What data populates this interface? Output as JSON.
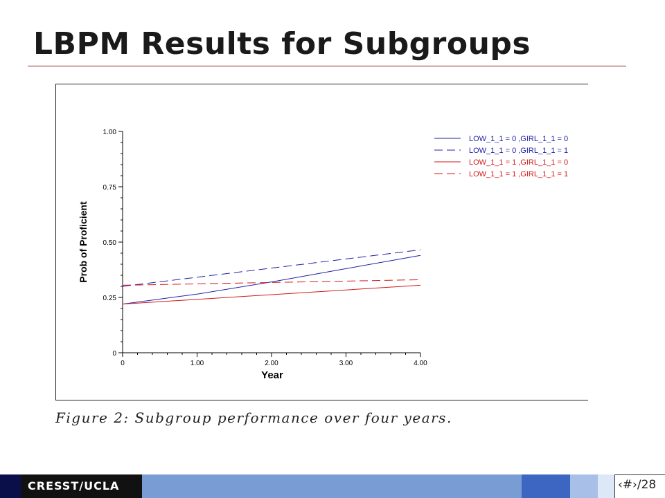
{
  "slide": {
    "title": "LBPM Results for Subgroups",
    "caption": "Figure 2:  Subgroup performance over four years."
  },
  "footer": {
    "brand": "CRESST/UCLA",
    "page_label": "‹#›/28"
  },
  "colors": {
    "blue": "#1f1fa8",
    "red": "#d01818",
    "title_rule": "#8b1c1c"
  },
  "chart_data": {
    "type": "line",
    "title": "",
    "xlabel": "Year",
    "ylabel": "Prob of Proficient",
    "xlim": [
      0,
      4
    ],
    "ylim": [
      0,
      1
    ],
    "x_ticks": [
      "0",
      "1.00",
      "2.00",
      "3.00",
      "4.00"
    ],
    "y_ticks": [
      "0",
      "0.25",
      "0.50",
      "0.75",
      "1.00"
    ],
    "x": [
      0,
      4
    ],
    "legend_position": "top-right",
    "grid": false,
    "series": [
      {
        "name": "LOW_1_1 = 0 ,GIRL_1_1 = 0",
        "x": [
          0,
          1,
          2,
          3,
          4
        ],
        "values": [
          0.22,
          0.265,
          0.32,
          0.38,
          0.44
        ],
        "color": "#1f1fa8",
        "dash": "solid"
      },
      {
        "name": "LOW_1_1 = 0 ,GIRL_1_1 = 1",
        "x": [
          0,
          4
        ],
        "values": [
          0.3,
          0.465
        ],
        "color": "#1f1fa8",
        "dash": "dashed"
      },
      {
        "name": "LOW_1_1 = 1 ,GIRL_1_1 = 0",
        "x": [
          0,
          4
        ],
        "values": [
          0.22,
          0.305
        ],
        "color": "#d01818",
        "dash": "solid"
      },
      {
        "name": "LOW_1_1 = 1 ,GIRL_1_1 = 1",
        "x": [
          0,
          4
        ],
        "values": [
          0.305,
          0.33
        ],
        "color": "#d01818",
        "dash": "dashed"
      }
    ]
  }
}
